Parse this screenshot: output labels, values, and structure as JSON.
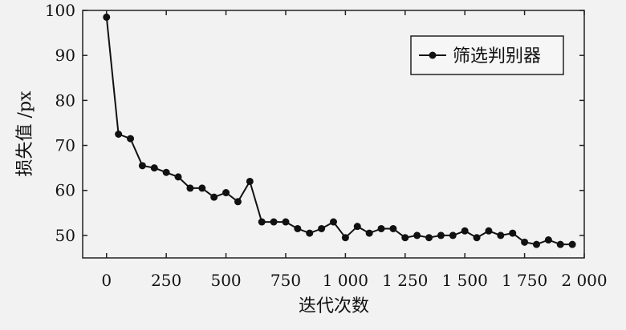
{
  "chart_data": {
    "type": "line",
    "title": "",
    "xlabel": "迭代次数",
    "ylabel": "损失值 /px",
    "xlim": [
      -100,
      2000
    ],
    "ylim": [
      45,
      100
    ],
    "xticks": [
      0,
      250,
      500,
      750,
      1000,
      1250,
      1500,
      1750,
      2000
    ],
    "xtick_labels": [
      "0",
      "250",
      "500",
      "750",
      "1 000",
      "1 250",
      "1 500",
      "1 750",
      "2 000"
    ],
    "yticks": [
      50,
      60,
      70,
      80,
      90,
      100
    ],
    "ytick_labels": [
      "50",
      "60",
      "70",
      "80",
      "90",
      "100"
    ],
    "grid": false,
    "legend": {
      "position": "top-right",
      "entries": [
        "筛选判别器"
      ]
    },
    "series": [
      {
        "name": "筛选判别器",
        "color": "#111111",
        "marker": "circle",
        "x": [
          0,
          50,
          100,
          150,
          200,
          250,
          300,
          350,
          400,
          450,
          500,
          550,
          600,
          650,
          700,
          750,
          800,
          850,
          900,
          950,
          1000,
          1050,
          1100,
          1150,
          1200,
          1250,
          1300,
          1350,
          1400,
          1450,
          1500,
          1550,
          1600,
          1650,
          1700,
          1750,
          1800,
          1850,
          1900,
          1950
        ],
        "values": [
          98.5,
          72.5,
          71.5,
          65.5,
          65,
          64,
          63,
          60.5,
          60.5,
          58.5,
          59.5,
          57.5,
          62,
          53,
          53,
          53,
          51.5,
          50.5,
          51.5,
          53,
          49.5,
          52,
          50.5,
          51.5,
          51.5,
          49.5,
          50,
          49.5,
          50,
          50,
          51,
          49.5,
          51,
          50,
          50.5,
          48.5,
          48,
          49,
          48,
          48
        ]
      }
    ]
  }
}
